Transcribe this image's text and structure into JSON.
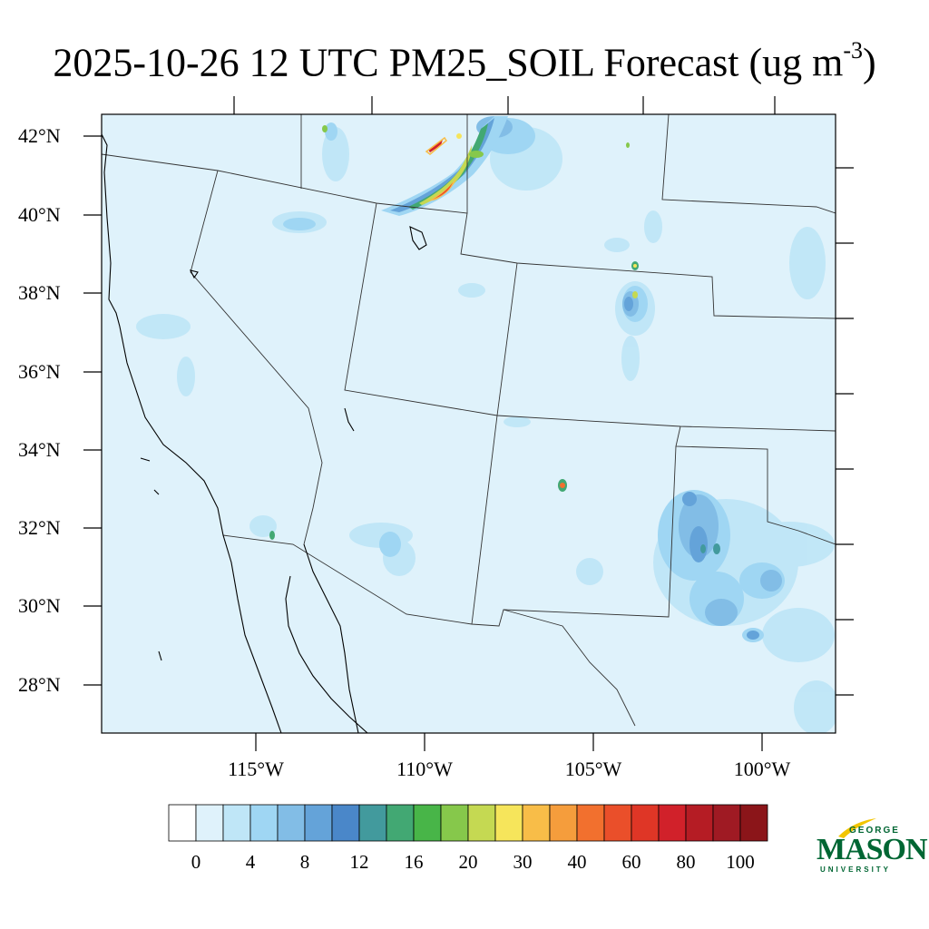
{
  "title": {
    "text": "2025-10-26 12 UTC PM25_SOIL Forecast (ug m",
    "exponent": "-3",
    "close": ")"
  },
  "lat_labels": [
    "42°N",
    "40°N",
    "38°N",
    "36°N",
    "34°N",
    "32°N",
    "30°N",
    "28°N"
  ],
  "lon_labels": [
    "115°W",
    "110°W",
    "105°W",
    "100°W"
  ],
  "colorbar": {
    "labels": [
      "0",
      "4",
      "8",
      "12",
      "16",
      "20",
      "30",
      "40",
      "60",
      "80",
      "100"
    ],
    "colors": [
      "#ffffff",
      "#dff2fb",
      "#bfe6f7",
      "#9fd6f3",
      "#82bde6",
      "#64a3d9",
      "#4a87c9",
      "#429a9d",
      "#42a873",
      "#48b548",
      "#86c84b",
      "#c5d952",
      "#f6e55b",
      "#f8bd48",
      "#f59d3c",
      "#f2702e",
      "#ea4f2a",
      "#df3626",
      "#d1212a",
      "#b51c24",
      "#9f1a23",
      "#8b1519"
    ]
  },
  "map": {
    "background_color": "#dff2fb",
    "border_color": "#333333"
  },
  "logo": {
    "top": "GEORGE",
    "main": "MASON",
    "bottom": "UNIVERSITY",
    "color": "#006633",
    "accent": "#f2c500"
  }
}
